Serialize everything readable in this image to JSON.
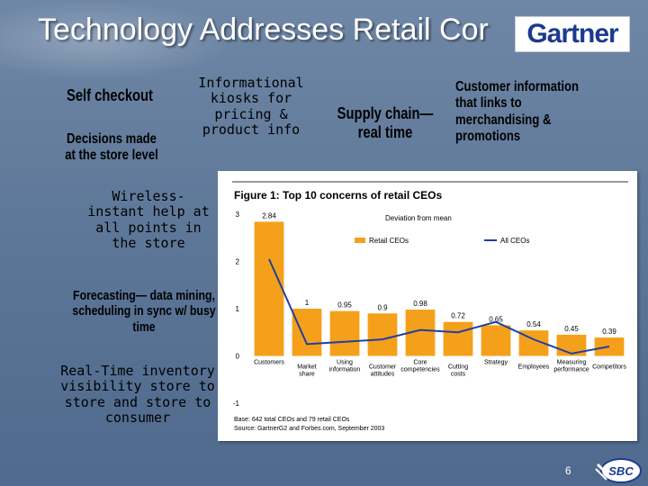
{
  "slide": {
    "title": "Technology Addresses Retail Cor",
    "logo_text": "Gartner",
    "page_number": "6",
    "footer_logo_text": "SBC"
  },
  "callouts": {
    "self_checkout": "Self checkout",
    "decisions": [
      "Decisions made",
      "at the store level"
    ],
    "kiosks": [
      "Informational",
      "kiosks for",
      "pricing &",
      "product info"
    ],
    "supply_chain": [
      "Supply chain—",
      "real time"
    ],
    "customer_info": [
      "Customer information",
      "that links to",
      "merchandising &",
      "promotions"
    ],
    "wireless": [
      "Wireless-",
      "instant help at",
      "all points in",
      "the store"
    ],
    "forecasting": [
      "Forecasting— data mining,",
      "scheduling in sync w/ busy",
      "time"
    ],
    "inventory": [
      "Real-Time inventory",
      "visibility store to",
      "store and store to",
      "consumer"
    ]
  },
  "chart_data": {
    "type": "bar",
    "title": "Figure 1: Top 10 concerns of retail CEOs",
    "subtitle": "Deviation from mean",
    "categories": [
      "Customers",
      "Market share",
      "Using information",
      "Customer attitudes",
      "Core competencies",
      "Cutting costs",
      "Strategy",
      "Employees",
      "Measuring performance",
      "Competitors"
    ],
    "series": [
      {
        "name": "Retail CEOs",
        "color": "#f5a01a",
        "values": [
          2.84,
          1,
          0.95,
          0.9,
          0.98,
          0.72,
          0.65,
          0.54,
          0.45,
          0.39
        ]
      },
      {
        "name": "All CEOs",
        "color": "#1f3fa3",
        "values": [
          2.05,
          0.25,
          0.3,
          0.35,
          0.55,
          0.5,
          0.72,
          0.35,
          0.05,
          0.2
        ]
      }
    ],
    "data_labels": [
      "2.84",
      "1",
      "0.95",
      "0.9",
      "0.98",
      "0.72",
      "0.65",
      "0.54",
      "0.45",
      "0.39"
    ],
    "y_ticks": [
      "3",
      "2",
      "1",
      "0",
      "-1"
    ],
    "ylim": [
      -1,
      3
    ],
    "legend_placement": "top",
    "footnote": [
      "Base: 642 total CEOs and 79 retail CEOs",
      "Source: GartnerG2 and Forbes.com, September 2003"
    ]
  }
}
